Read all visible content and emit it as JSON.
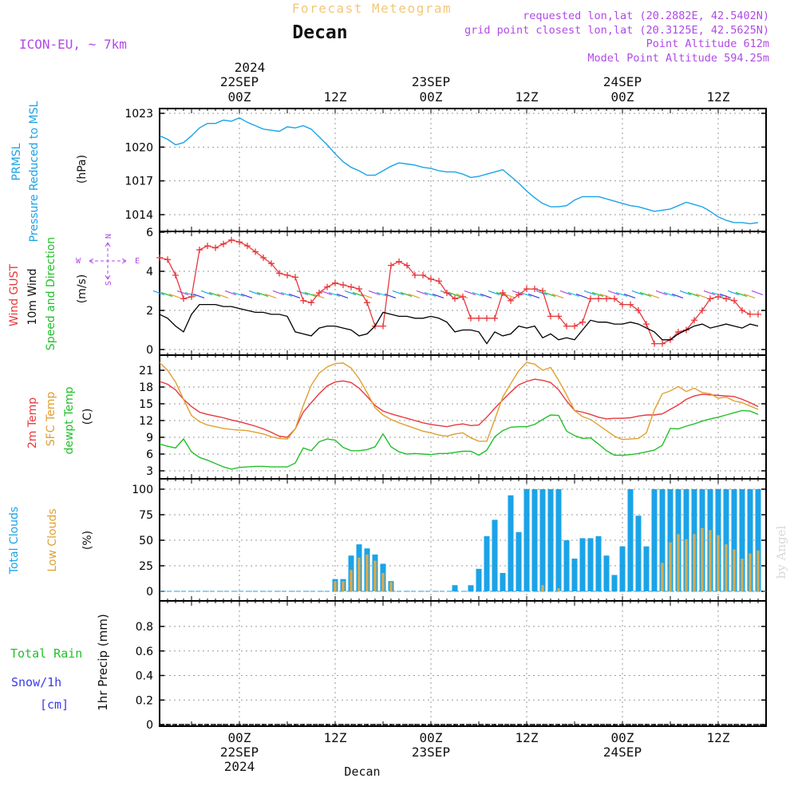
{
  "header": {
    "chart_title": "Forecast Meteogram",
    "location": "Decan",
    "model": "ICON-EU, ~ 7km",
    "requested": "requested lon,lat (20.2882E, 42.5402N)",
    "grid_point": "grid point closest lon,lat (20.3125E, 42.5625N)",
    "point_altitude": "Point Altitude 612m",
    "model_altitude": "Model Point Altitude 594.25m"
  },
  "colors": {
    "pressure": "#1aa3e8",
    "gust": "#e8383d",
    "wind10m": "#000000",
    "wind_dir": "#22c02a",
    "temp2m": "#e8383d",
    "sfc_temp": "#e0a030",
    "dewpt": "#22c02a",
    "total_clouds": "#1aa3e8",
    "low_clouds": "#d4aa50",
    "rain": "#22c02a",
    "snow": "#3a3ae8",
    "compass": "#b04ae8",
    "title_gold": "#f2c87a",
    "info_purple": "#b04ae8"
  },
  "time_axis": {
    "top_year": "2024",
    "top_labels": [
      {
        "t": 10,
        "hour": "00Z",
        "date": "22SEP",
        "year": "2024"
      },
      {
        "t": 22,
        "hour": "12Z",
        "date": "",
        "year": ""
      },
      {
        "t": 34,
        "hour": "00Z",
        "date": "23SEP",
        "year": ""
      },
      {
        "t": 46,
        "hour": "12Z",
        "date": "",
        "year": ""
      },
      {
        "t": 58,
        "hour": "00Z",
        "date": "24SEP",
        "year": ""
      },
      {
        "t": 70,
        "hour": "12Z",
        "date": "",
        "year": ""
      }
    ],
    "bottom_labels": [
      {
        "t": 10,
        "hour": "00Z",
        "date": "22SEP",
        "year": "2024"
      },
      {
        "t": 22,
        "hour": "12Z",
        "date": "",
        "year": ""
      },
      {
        "t": 34,
        "hour": "00Z",
        "date": "23SEP",
        "year": ""
      },
      {
        "t": 46,
        "hour": "12Z",
        "date": "",
        "year": ""
      },
      {
        "t": 58,
        "hour": "00Z",
        "date": "24SEP",
        "year": ""
      },
      {
        "t": 70,
        "hour": "12Z",
        "date": "",
        "year": ""
      }
    ],
    "footer_label": "Decan"
  },
  "panel_labels": {
    "pressure": {
      "line1": "PRMSL",
      "line2": "Pressure Reduced to MSL",
      "unit": "(hPa)"
    },
    "wind": {
      "gust": "Wind GUST",
      "wind10m": "10m Wind",
      "dir": "Speed and Direction",
      "unit": "(m/s)"
    },
    "temp": {
      "t2m": "2m Temp",
      "sfc": "SFC Temp",
      "dew": "dewpt Temp",
      "unit": "(C)"
    },
    "clouds": {
      "total": "Total Clouds",
      "low": "Low Clouds",
      "unit": "(%)"
    },
    "precip": {
      "rain": "Total Rain",
      "snow": "Snow/1h",
      "snow_unit": "[cm]",
      "axis": "1hr Precip (mm)"
    }
  },
  "compass": {
    "n": "N",
    "s": "S",
    "e": "E",
    "w": "W"
  },
  "watermark": "by Angel",
  "chart_data": [
    {
      "type": "line",
      "name": "pressure",
      "ylim": [
        1013,
        1024
      ],
      "yticks": [
        1014,
        1017,
        1020,
        1023
      ],
      "tmin": 0,
      "tmax": 76,
      "x": [
        0,
        1,
        2,
        3,
        4,
        5,
        6,
        7,
        8,
        9,
        10,
        11,
        12,
        13,
        14,
        15,
        16,
        17,
        18,
        19,
        20,
        21,
        22,
        23,
        24,
        25,
        26,
        27,
        28,
        29,
        30,
        31,
        32,
        33,
        34,
        35,
        36,
        37,
        38,
        39,
        40,
        41,
        42,
        43,
        44,
        45,
        46,
        47,
        48,
        49,
        50,
        51,
        52,
        53,
        54,
        55,
        56,
        57,
        58,
        59,
        60,
        61,
        62,
        63,
        64,
        65,
        66,
        67,
        68,
        69,
        70,
        71,
        72,
        73,
        74,
        75
      ],
      "series": [
        {
          "values": [
            1021.0,
            1020.7,
            1020.2,
            1020.4,
            1021.0,
            1021.7,
            1022.1,
            1022.1,
            1022.4,
            1022.3,
            1022.6,
            1022.2,
            1021.9,
            1021.6,
            1021.5,
            1021.4,
            1021.8,
            1021.7,
            1021.9,
            1021.6,
            1020.9,
            1020.2,
            1019.4,
            1018.7,
            1018.2,
            1017.9,
            1017.5,
            1017.5,
            1017.9,
            1018.3,
            1018.6,
            1018.5,
            1018.4,
            1018.2,
            1018.1,
            1017.9,
            1017.8,
            1017.8,
            1017.6,
            1017.3,
            1017.4,
            1017.6,
            1017.8,
            1018.0,
            1017.4,
            1016.8,
            1016.1,
            1015.5,
            1015.0,
            1014.7,
            1014.7,
            1014.8,
            1015.3,
            1015.6,
            1015.6,
            1015.6,
            1015.4,
            1015.2,
            1015.0,
            1014.8,
            1014.7,
            1014.5,
            1014.3,
            1014.4,
            1014.5,
            1014.8,
            1015.1,
            1014.9,
            1014.7,
            1014.3,
            1013.8,
            1013.5,
            1013.3,
            1013.3,
            1013.2,
            1013.3
          ]
        }
      ]
    },
    {
      "type": "line",
      "name": "wind",
      "ylim": [
        0,
        6
      ],
      "yticks": [
        0,
        2,
        4,
        6
      ],
      "tmin": 0,
      "tmax": 76,
      "x": [
        0,
        1,
        2,
        3,
        4,
        5,
        6,
        7,
        8,
        9,
        10,
        11,
        12,
        13,
        14,
        15,
        16,
        17,
        18,
        19,
        20,
        21,
        22,
        23,
        24,
        25,
        26,
        27,
        28,
        29,
        30,
        31,
        32,
        33,
        34,
        35,
        36,
        37,
        38,
        39,
        40,
        41,
        42,
        43,
        44,
        45,
        46,
        47,
        48,
        49,
        50,
        51,
        52,
        53,
        54,
        55,
        56,
        57,
        58,
        59,
        60,
        61,
        62,
        63,
        64,
        65,
        66,
        67,
        68,
        69,
        70,
        71,
        72,
        73,
        74,
        75
      ],
      "series": [
        {
          "name": "Wind GUST",
          "values": [
            4.7,
            4.6,
            3.8,
            2.6,
            2.7,
            5.1,
            5.3,
            5.2,
            5.4,
            5.6,
            5.5,
            5.3,
            5.0,
            4.7,
            4.4,
            3.9,
            3.8,
            3.7,
            2.5,
            2.4,
            2.9,
            3.2,
            3.4,
            3.3,
            3.2,
            3.1,
            2.4,
            1.2,
            1.2,
            4.3,
            4.5,
            4.3,
            3.8,
            3.8,
            3.6,
            3.5,
            2.9,
            2.6,
            2.7,
            1.6,
            1.6,
            1.6,
            1.6,
            2.9,
            2.5,
            2.8,
            3.1,
            3.1,
            3.0,
            1.7,
            1.7,
            1.2,
            1.2,
            1.4,
            2.6,
            2.6,
            2.6,
            2.6,
            2.3,
            2.3,
            2.0,
            1.3,
            0.3,
            0.3,
            0.5,
            0.9,
            1.0,
            1.5,
            2.0,
            2.6,
            2.7,
            2.6,
            2.5,
            2.0,
            1.8,
            1.8
          ]
        },
        {
          "name": "10m Wind",
          "values": [
            1.8,
            1.6,
            1.2,
            0.9,
            1.8,
            2.3,
            2.3,
            2.3,
            2.2,
            2.2,
            2.1,
            2.0,
            1.9,
            1.9,
            1.8,
            1.8,
            1.7,
            0.9,
            0.8,
            0.7,
            1.1,
            1.2,
            1.2,
            1.1,
            1.0,
            0.7,
            0.8,
            1.2,
            1.9,
            1.8,
            1.7,
            1.7,
            1.6,
            1.6,
            1.7,
            1.6,
            1.4,
            0.9,
            1.0,
            1.0,
            0.9,
            0.3,
            0.9,
            0.7,
            0.8,
            1.2,
            1.1,
            1.2,
            0.6,
            0.8,
            0.5,
            0.6,
            0.5,
            1.0,
            1.5,
            1.4,
            1.4,
            1.3,
            1.3,
            1.4,
            1.3,
            1.1,
            0.9,
            0.5,
            0.5,
            0.8,
            1.0,
            1.2,
            1.3,
            1.1,
            1.2,
            1.3,
            1.2,
            1.1,
            1.3,
            1.2
          ]
        }
      ]
    },
    {
      "type": "line",
      "name": "temperature",
      "ylim": [
        2.5,
        23
      ],
      "yticks": [
        3,
        6,
        9,
        12,
        15,
        18,
        21
      ],
      "tmin": 0,
      "tmax": 76,
      "x": [
        0,
        1,
        2,
        3,
        4,
        5,
        6,
        7,
        8,
        9,
        10,
        11,
        12,
        13,
        14,
        15,
        16,
        17,
        18,
        19,
        20,
        21,
        22,
        23,
        24,
        25,
        26,
        27,
        28,
        29,
        30,
        31,
        32,
        33,
        34,
        35,
        36,
        37,
        38,
        39,
        40,
        41,
        42,
        43,
        44,
        45,
        46,
        47,
        48,
        49,
        50,
        51,
        52,
        53,
        54,
        55,
        56,
        57,
        58,
        59,
        60,
        61,
        62,
        63,
        64,
        65,
        66,
        67,
        68,
        69,
        70,
        71,
        72,
        73,
        74,
        75
      ],
      "series": [
        {
          "name": "2m Temp",
          "values": [
            19.0,
            18.5,
            17.5,
            15.8,
            14.5,
            13.5,
            13.1,
            12.8,
            12.5,
            12.1,
            11.8,
            11.4,
            11.0,
            10.5,
            9.9,
            9.2,
            9.0,
            10.5,
            13.5,
            15.2,
            16.8,
            18.2,
            18.9,
            19.1,
            18.8,
            17.8,
            16.3,
            14.7,
            13.7,
            13.2,
            12.8,
            12.4,
            12.0,
            11.6,
            11.3,
            11.1,
            10.9,
            11.2,
            11.4,
            11.1,
            11.2,
            12.6,
            14.2,
            15.7,
            17.1,
            18.4,
            19.0,
            19.4,
            19.2,
            18.8,
            17.5,
            15.5,
            13.8,
            13.5,
            13.1,
            12.6,
            12.3,
            12.4,
            12.4,
            12.5,
            12.8,
            13.0,
            13.0,
            13.2,
            14.0,
            14.8,
            15.8,
            16.4,
            16.7,
            16.6,
            16.5,
            16.4,
            16.3,
            15.8,
            15.2,
            14.5
          ]
        },
        {
          "name": "SFC Temp",
          "values": [
            22.4,
            21.0,
            18.9,
            15.8,
            12.9,
            11.8,
            11.2,
            10.9,
            10.6,
            10.4,
            10.3,
            10.2,
            9.9,
            9.6,
            9.1,
            8.8,
            8.7,
            10.5,
            14.7,
            18.3,
            20.5,
            21.6,
            22.2,
            22.3,
            21.4,
            19.5,
            17.0,
            14.3,
            13.0,
            12.2,
            11.6,
            11.1,
            10.6,
            10.1,
            9.8,
            9.4,
            9.2,
            9.6,
            9.8,
            8.9,
            8.3,
            8.3,
            12.2,
            16.2,
            18.6,
            20.9,
            22.4,
            22.1,
            21.0,
            21.5,
            19.2,
            16.6,
            13.8,
            12.7,
            12.2,
            11.2,
            10.2,
            9.2,
            8.6,
            8.7,
            8.8,
            9.8,
            13.9,
            16.8,
            17.3,
            18.1,
            17.2,
            17.8,
            17.0,
            16.8,
            16.0,
            16.2,
            15.5,
            15.2,
            14.6,
            14.0
          ]
        },
        {
          "name": "dewpt Temp",
          "values": [
            7.8,
            7.4,
            7.1,
            8.7,
            6.4,
            5.4,
            4.9,
            4.3,
            3.7,
            3.3,
            3.6,
            3.7,
            3.8,
            3.8,
            3.7,
            3.7,
            3.7,
            4.4,
            7.1,
            6.6,
            8.2,
            8.7,
            8.5,
            7.2,
            6.6,
            6.6,
            6.8,
            7.3,
            9.6,
            7.3,
            6.4,
            6.0,
            6.1,
            6.0,
            5.9,
            6.1,
            6.1,
            6.3,
            6.5,
            6.5,
            5.8,
            6.7,
            9.1,
            10.2,
            10.8,
            10.9,
            10.9,
            11.3,
            12.2,
            13.0,
            12.9,
            10.1,
            9.3,
            8.8,
            8.9,
            7.8,
            6.6,
            5.8,
            5.8,
            5.9,
            6.1,
            6.4,
            6.7,
            7.6,
            10.6,
            10.5,
            11.0,
            11.4,
            11.9,
            12.3,
            12.6,
            13.0,
            13.4,
            13.8,
            13.7,
            13.1
          ]
        }
      ]
    },
    {
      "type": "bar",
      "name": "clouds",
      "ylim": [
        0,
        100
      ],
      "yticks": [
        0,
        25,
        50,
        75,
        100
      ],
      "tmin": 0,
      "tmax": 76,
      "x": [
        0,
        1,
        2,
        3,
        4,
        5,
        6,
        7,
        8,
        9,
        10,
        11,
        12,
        13,
        14,
        15,
        16,
        17,
        18,
        19,
        20,
        21,
        22,
        23,
        24,
        25,
        26,
        27,
        28,
        29,
        30,
        31,
        32,
        33,
        34,
        35,
        36,
        37,
        38,
        39,
        40,
        41,
        42,
        43,
        44,
        45,
        46,
        47,
        48,
        49,
        50,
        51,
        52,
        53,
        54,
        55,
        56,
        57,
        58,
        59,
        60,
        61,
        62,
        63,
        64,
        65,
        66,
        67,
        68,
        69,
        70,
        71,
        72,
        73,
        74,
        75
      ],
      "series": [
        {
          "name": "Total Clouds",
          "values": [
            0,
            0,
            0,
            0,
            0,
            0,
            0,
            0,
            0,
            0,
            0,
            0,
            0,
            0,
            0,
            0,
            0,
            0,
            0,
            0,
            0,
            0,
            12,
            12,
            35,
            46,
            42,
            36,
            27,
            10,
            0,
            0,
            0,
            0,
            0,
            0,
            0,
            6,
            0,
            6,
            22,
            54,
            70,
            18,
            94,
            58,
            100,
            100,
            100,
            100,
            100,
            50,
            32,
            52,
            52,
            54,
            35,
            16,
            44,
            100,
            74,
            44,
            100,
            100,
            100,
            100,
            100,
            100,
            100,
            100,
            100,
            100,
            100,
            100,
            100,
            100
          ]
        },
        {
          "name": "Low Clouds",
          "values": [
            0,
            0,
            0,
            0,
            0,
            0,
            0,
            0,
            0,
            0,
            0,
            0,
            0,
            0,
            0,
            0,
            0,
            0,
            0,
            0,
            0,
            0,
            10,
            10,
            21,
            33,
            36,
            30,
            18,
            9,
            0,
            0,
            0,
            0,
            0,
            0,
            0,
            0,
            0,
            0,
            0,
            0,
            0,
            0,
            0,
            0,
            0,
            0,
            6,
            0,
            3,
            0,
            0,
            0,
            0,
            0,
            0,
            0,
            0,
            0,
            0,
            0,
            0,
            28,
            48,
            56,
            51,
            56,
            62,
            60,
            55,
            46,
            41,
            32,
            37,
            40
          ]
        }
      ]
    },
    {
      "type": "bar",
      "name": "precipitation",
      "ylim": [
        0,
        1.0
      ],
      "yticks": [
        0,
        0.2,
        0.4,
        0.6,
        0.8
      ],
      "ytick_labels": [
        "0",
        "0.2",
        "0.4",
        "0.6",
        "0.8"
      ],
      "tmin": 0,
      "tmax": 76,
      "series": [
        {
          "name": "Total Rain",
          "values": []
        },
        {
          "name": "Snow/1h",
          "values": []
        }
      ]
    }
  ]
}
